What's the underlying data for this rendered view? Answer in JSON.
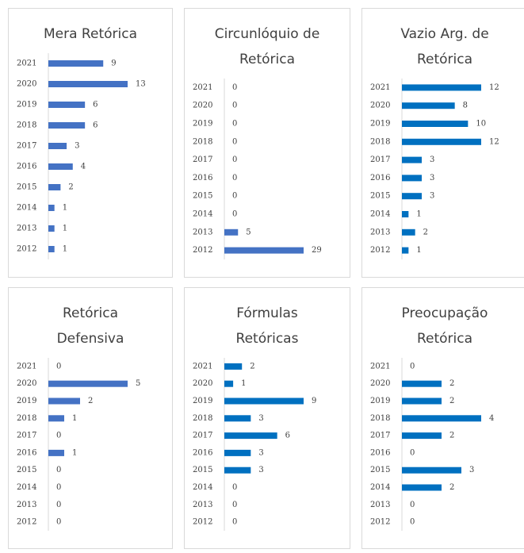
{
  "chart_data": [
    {
      "type": "bar",
      "title": "Mera Retórica",
      "color": "#4472c4",
      "categories": [
        "2021",
        "2020",
        "2019",
        "2018",
        "2017",
        "2016",
        "2015",
        "2014",
        "2013",
        "2012"
      ],
      "values": [
        9,
        13,
        6,
        6,
        3,
        4,
        2,
        1,
        1,
        1
      ]
    },
    {
      "type": "bar",
      "title": "Circunlóquio de Retórica",
      "color": "#4472c4",
      "categories": [
        "2021",
        "2020",
        "2019",
        "2018",
        "2017",
        "2016",
        "2015",
        "2014",
        "2013",
        "2012"
      ],
      "values": [
        0,
        0,
        0,
        0,
        0,
        0,
        0,
        0,
        5,
        29
      ]
    },
    {
      "type": "bar",
      "title": "Vazio Arg. de Retórica",
      "color": "#0070c0",
      "categories": [
        "2021",
        "2020",
        "2019",
        "2018",
        "2017",
        "2016",
        "2015",
        "2014",
        "2013",
        "2012"
      ],
      "values": [
        12,
        8,
        10,
        12,
        3,
        3,
        3,
        1,
        2,
        1
      ]
    },
    {
      "type": "bar",
      "title": "Retórica Defensiva",
      "color": "#4472c4",
      "categories": [
        "2021",
        "2020",
        "2019",
        "2018",
        "2017",
        "2016",
        "2015",
        "2014",
        "2013",
        "2012"
      ],
      "values": [
        0,
        5,
        2,
        1,
        0,
        1,
        0,
        0,
        0,
        0
      ]
    },
    {
      "type": "bar",
      "title": "Fórmulas Retóricas",
      "color": "#0070c0",
      "categories": [
        "2021",
        "2020",
        "2019",
        "2018",
        "2017",
        "2016",
        "2015",
        "2014",
        "2013",
        "2012"
      ],
      "values": [
        2,
        1,
        9,
        3,
        6,
        3,
        3,
        0,
        0,
        0
      ]
    },
    {
      "type": "bar",
      "title": "Preocupação Retórica",
      "color": "#0070c0",
      "categories": [
        "2021",
        "2020",
        "2019",
        "2018",
        "2017",
        "2016",
        "2015",
        "2014",
        "2013",
        "2012"
      ],
      "values": [
        0,
        2,
        2,
        4,
        2,
        0,
        3,
        2,
        0,
        0
      ]
    }
  ]
}
